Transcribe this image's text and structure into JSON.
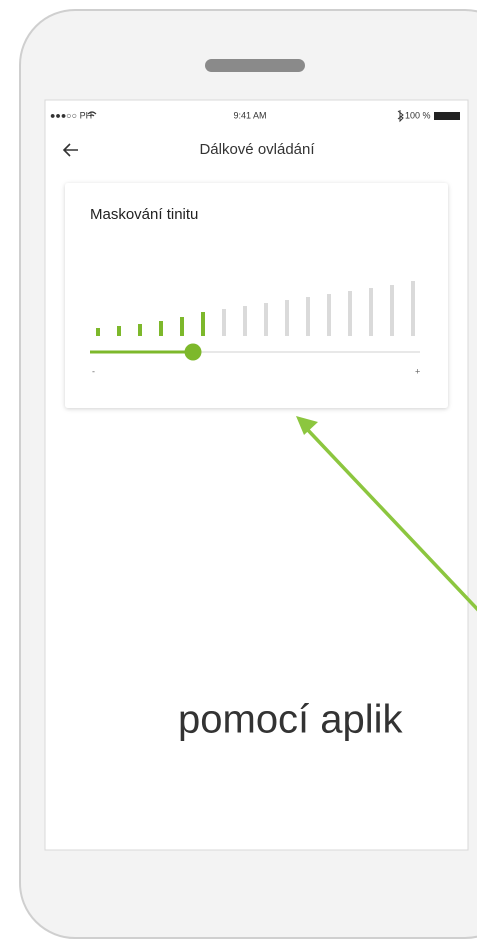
{
  "status_bar": {
    "carrier": "●●●○○ PH",
    "time": "9:41 AM",
    "battery": "100 %"
  },
  "header": {
    "title": "Dálkové ovládání"
  },
  "card": {
    "title": "Maskování tinitu",
    "min_label": "-",
    "max_label": "+"
  },
  "caption": "pomocí aplik"
}
